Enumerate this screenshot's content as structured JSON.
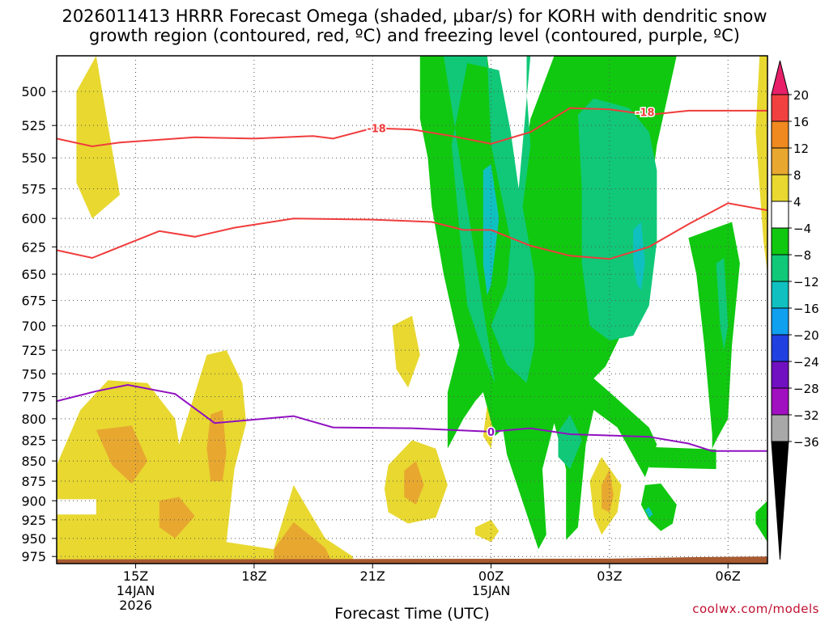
{
  "chart_data": {
    "type": "heatmap",
    "title_line1": "2026011413 HRRR Forecast Omega (shaded, μbar/s) for KORH with dendritic snow",
    "title_line2": "growth region (contoured, red, ºC) and freezing level (contoured, purple, ºC)",
    "xlabel": "Forecast Time (UTC)",
    "credit": "coolwx.com/models",
    "x_range_hours": [
      13,
      31
    ],
    "y_range_mb": [
      475,
      985
    ],
    "y_ticks": [
      "500",
      "525",
      "550",
      "575",
      "600",
      "625",
      "650",
      "675",
      "700",
      "725",
      "750",
      "775",
      "800",
      "825",
      "850",
      "875",
      "900",
      "925",
      "950",
      "975"
    ],
    "x_ticks": [
      {
        "hour": 15,
        "label": "15Z",
        "sub1": "14JAN",
        "sub2": "2026"
      },
      {
        "hour": 18,
        "label": "18Z",
        "sub1": "",
        "sub2": ""
      },
      {
        "hour": 21,
        "label": "21Z",
        "sub1": "",
        "sub2": ""
      },
      {
        "hour": 24,
        "label": "00Z",
        "sub1": "15JAN",
        "sub2": ""
      },
      {
        "hour": 27,
        "label": "03Z",
        "sub1": "",
        "sub2": ""
      },
      {
        "hour": 30,
        "label": "06Z",
        "sub1": "",
        "sub2": ""
      }
    ],
    "colorbar": {
      "labels": [
        "20",
        "16",
        "12",
        "8",
        "4",
        "−4",
        "−8",
        "−12",
        "−16",
        "−20",
        "−24",
        "−28",
        "−32",
        "−36"
      ],
      "colors_top_to_bottom": [
        "#e8206a",
        "#f04040",
        "#f08a20",
        "#e8a830",
        "#e8d830",
        "#ffffff",
        "#10c810",
        "#10c878",
        "#10c0c0",
        "#10a0f0",
        "#2040e0",
        "#7010c0",
        "#a010c0",
        "#a8a8a8",
        "#000000"
      ]
    },
    "isotherm_labels": {
      "dgz_upper": "-18",
      "dgz_upper_2": "-18",
      "freezing": "0"
    },
    "dgz_upper_mb": [
      [
        13.0,
        535
      ],
      [
        13.9,
        541
      ],
      [
        14.6,
        538
      ],
      [
        16.5,
        534
      ],
      [
        18.0,
        535
      ],
      [
        19.5,
        533
      ],
      [
        20.0,
        535
      ],
      [
        21.0,
        527
      ],
      [
        22.0,
        528
      ],
      [
        23.0,
        533
      ],
      [
        24.0,
        539
      ],
      [
        25.0,
        530
      ],
      [
        26.0,
        512
      ],
      [
        27.0,
        513
      ],
      [
        28.0,
        517
      ],
      [
        29.0,
        514
      ],
      [
        31.0,
        514
      ]
    ],
    "dgz_lower_mb": [
      [
        13.0,
        628
      ],
      [
        13.9,
        635
      ],
      [
        14.6,
        625
      ],
      [
        15.6,
        611
      ],
      [
        16.5,
        616
      ],
      [
        17.5,
        608
      ],
      [
        19.0,
        600
      ],
      [
        21.0,
        601
      ],
      [
        22.5,
        603
      ],
      [
        23.3,
        610
      ],
      [
        24.0,
        610
      ],
      [
        25.0,
        624
      ],
      [
        26.0,
        633
      ],
      [
        27.0,
        636
      ],
      [
        28.0,
        625
      ],
      [
        29.0,
        605
      ],
      [
        30.0,
        587
      ],
      [
        31.0,
        593
      ]
    ],
    "freezing_level_mb": [
      [
        13.0,
        780
      ],
      [
        14.0,
        769
      ],
      [
        14.8,
        762
      ],
      [
        16.0,
        772
      ],
      [
        17.0,
        805
      ],
      [
        19.0,
        797
      ],
      [
        20.0,
        810
      ],
      [
        22.0,
        811
      ],
      [
        24.0,
        815
      ],
      [
        25.0,
        811
      ],
      [
        26.0,
        818
      ],
      [
        28.0,
        821
      ],
      [
        29.0,
        829
      ],
      [
        29.6,
        838
      ],
      [
        31.0,
        838
      ]
    ],
    "omega_regions": [
      {
        "value_range": "4 to 8",
        "color": "#e8d830",
        "pts": [
          [
            14.0,
            475
          ],
          [
            14.6,
            580
          ],
          [
            13.9,
            600
          ],
          [
            13.5,
            570
          ],
          [
            13.5,
            500
          ]
        ]
      },
      {
        "value_range": "4 to 8",
        "color": "#e8d830",
        "pts": [
          [
            13,
            855
          ],
          [
            13.6,
            790
          ],
          [
            14.3,
            757
          ],
          [
            15.3,
            760
          ],
          [
            16.0,
            800
          ],
          [
            16.1,
            830
          ],
          [
            16.8,
            730
          ],
          [
            17.3,
            725
          ],
          [
            17.7,
            760
          ],
          [
            17.8,
            805
          ],
          [
            17.5,
            860
          ],
          [
            17.3,
            955
          ],
          [
            18.5,
            965
          ],
          [
            19.0,
            880
          ],
          [
            19.8,
            950
          ],
          [
            20.5,
            975
          ],
          [
            20.5,
            985
          ],
          [
            13,
            985
          ],
          [
            13,
            918
          ],
          [
            14,
            918
          ],
          [
            14,
            898
          ],
          [
            13,
            898
          ]
        ]
      },
      {
        "value_range": "8 to 12",
        "color": "#e8a830",
        "pts": [
          [
            14.0,
            813
          ],
          [
            14.9,
            808
          ],
          [
            15.3,
            850
          ],
          [
            14.9,
            878
          ],
          [
            14.4,
            855
          ]
        ]
      },
      {
        "value_range": "8 to 12",
        "color": "#e8a830",
        "pts": [
          [
            15.6,
            900
          ],
          [
            16.1,
            895
          ],
          [
            16.5,
            920
          ],
          [
            16.0,
            950
          ],
          [
            15.6,
            935
          ]
        ]
      },
      {
        "value_range": "8 to 12",
        "color": "#e8a830",
        "pts": [
          [
            16.9,
            795
          ],
          [
            17.2,
            790
          ],
          [
            17.3,
            840
          ],
          [
            17.2,
            875
          ],
          [
            16.9,
            875
          ],
          [
            16.8,
            835
          ]
        ]
      },
      {
        "value_range": "8 to 12",
        "color": "#e8a830",
        "pts": [
          [
            18.5,
            965
          ],
          [
            19.0,
            928
          ],
          [
            19.8,
            963
          ],
          [
            20.0,
            985
          ],
          [
            18.5,
            985
          ]
        ]
      },
      {
        "value_range": "4 to 8",
        "color": "#e8d830",
        "pts": [
          [
            21.5,
            700
          ],
          [
            22.0,
            690
          ],
          [
            22.2,
            730
          ],
          [
            21.9,
            765
          ],
          [
            21.6,
            745
          ]
        ]
      },
      {
        "value_range": "4 to 8",
        "color": "#e8d830",
        "pts": [
          [
            21.4,
            855
          ],
          [
            22.0,
            825
          ],
          [
            22.6,
            835
          ],
          [
            22.9,
            880
          ],
          [
            22.6,
            922
          ],
          [
            21.9,
            930
          ],
          [
            21.4,
            915
          ],
          [
            21.3,
            885
          ]
        ]
      },
      {
        "value_range": "8 to 12",
        "color": "#e8a830",
        "pts": [
          [
            21.8,
            862
          ],
          [
            22.1,
            850
          ],
          [
            22.3,
            880
          ],
          [
            22.1,
            905
          ],
          [
            21.8,
            895
          ]
        ]
      },
      {
        "value_range": "4 to 8",
        "color": "#e8d830",
        "pts": [
          [
            23.9,
            785
          ],
          [
            24.0,
            775
          ],
          [
            24.1,
            800
          ],
          [
            24.0,
            835
          ],
          [
            23.8,
            820
          ]
        ]
      },
      {
        "value_range": "4 to 8",
        "color": "#e8d830",
        "pts": [
          [
            23.6,
            935
          ],
          [
            24.0,
            925
          ],
          [
            24.2,
            940
          ],
          [
            24.0,
            955
          ],
          [
            23.6,
            945
          ]
        ]
      },
      {
        "value_range": "4 to 8",
        "color": "#e8d830",
        "pts": [
          [
            26.5,
            875
          ],
          [
            26.8,
            845
          ],
          [
            27.3,
            880
          ],
          [
            27.2,
            915
          ],
          [
            26.8,
            945
          ],
          [
            26.6,
            920
          ]
        ]
      },
      {
        "value_range": "8 to 12",
        "color": "#e8a830",
        "pts": [
          [
            26.8,
            880
          ],
          [
            27.0,
            860
          ],
          [
            27.1,
            893
          ],
          [
            27.0,
            915
          ],
          [
            26.8,
            910
          ]
        ]
      },
      {
        "value_range": "4 to 8",
        "color": "#e8d830",
        "pts": [
          [
            30.8,
            475
          ],
          [
            31.0,
            475
          ],
          [
            31.0,
            650
          ],
          [
            30.9,
            620
          ],
          [
            30.7,
            530
          ]
        ]
      },
      {
        "value_range": "-8 to -4",
        "color": "#10c810",
        "pts": [
          [
            22.2,
            475
          ],
          [
            23.9,
            475
          ],
          [
            24.2,
            540
          ],
          [
            24.7,
            580
          ],
          [
            25.0,
            520
          ],
          [
            25.6,
            475
          ],
          [
            28.7,
            475
          ],
          [
            28.2,
            540
          ],
          [
            27.9,
            615
          ],
          [
            27.4,
            700
          ],
          [
            26.9,
            742
          ],
          [
            26.6,
            755
          ],
          [
            27.0,
            770
          ],
          [
            28.0,
            810
          ],
          [
            28.2,
            830
          ],
          [
            27.9,
            870
          ],
          [
            27.2,
            810
          ],
          [
            26.6,
            790
          ],
          [
            26.4,
            830
          ],
          [
            26.2,
            935
          ],
          [
            25.9,
            952
          ],
          [
            25.9,
            860
          ],
          [
            25.6,
            805
          ],
          [
            25.3,
            860
          ],
          [
            25.4,
            945
          ],
          [
            25.2,
            965
          ],
          [
            24.4,
            842
          ],
          [
            24.3,
            812
          ],
          [
            24.1,
            820
          ],
          [
            23.8,
            770
          ],
          [
            23.6,
            780
          ],
          [
            23.3,
            800
          ],
          [
            22.9,
            835
          ],
          [
            22.9,
            770
          ],
          [
            23.2,
            720
          ],
          [
            22.8,
            650
          ],
          [
            22.5,
            590
          ],
          [
            22.4,
            550
          ],
          [
            22.2,
            520
          ]
        ]
      },
      {
        "value_range": "-8 to -4",
        "color": "#10c810",
        "pts": [
          [
            29.0,
            617
          ],
          [
            30.1,
            603
          ],
          [
            30.3,
            640
          ],
          [
            30.1,
            720
          ],
          [
            30.0,
            800
          ],
          [
            29.7,
            825
          ],
          [
            29.6,
            835
          ],
          [
            29.6,
            818
          ],
          [
            29.4,
            720
          ],
          [
            29.2,
            650
          ]
        ]
      },
      {
        "value_range": "-8 to -4",
        "color": "#10c810",
        "pts": [
          [
            28.0,
            833
          ],
          [
            29.7,
            836
          ],
          [
            29.7,
            860
          ],
          [
            28.0,
            858
          ]
        ]
      },
      {
        "value_range": "-8 to -4",
        "color": "#10c810",
        "pts": [
          [
            27.9,
            880
          ],
          [
            28.3,
            878
          ],
          [
            28.7,
            905
          ],
          [
            28.6,
            930
          ],
          [
            28.3,
            940
          ],
          [
            28.0,
            925
          ],
          [
            27.8,
            905
          ]
        ]
      },
      {
        "value_range": "-8 to -4",
        "color": "#10c810",
        "pts": [
          [
            30.7,
            915
          ],
          [
            31.0,
            900
          ],
          [
            31.0,
            955
          ],
          [
            30.7,
            930
          ]
        ]
      },
      {
        "value_range": "-12 to -8",
        "color": "#10c878",
        "pts": [
          [
            22.8,
            475
          ],
          [
            23.9,
            475
          ],
          [
            24.0,
            540
          ],
          [
            24.5,
            620
          ],
          [
            24.4,
            660
          ],
          [
            24.0,
            700
          ],
          [
            24.4,
            740
          ],
          [
            24.9,
            760
          ],
          [
            25.1,
            720
          ],
          [
            25.1,
            650
          ],
          [
            24.8,
            590
          ],
          [
            25.0,
            540
          ],
          [
            24.9,
            500
          ],
          [
            24.9,
            475
          ],
          [
            25.0,
            475
          ],
          [
            24.7,
            575
          ],
          [
            24.5,
            530
          ],
          [
            24.2,
            485
          ],
          [
            23.4,
            480
          ],
          [
            23.0,
            540
          ],
          [
            23.2,
            610
          ],
          [
            23.4,
            680
          ],
          [
            23.9,
            740
          ],
          [
            24.1,
            760
          ]
        ]
      },
      {
        "value_range": "-12 to -8",
        "color": "#10c878",
        "pts": [
          [
            26.2,
            517
          ],
          [
            26.6,
            505
          ],
          [
            27.5,
            512
          ],
          [
            28.0,
            530
          ],
          [
            28.2,
            560
          ],
          [
            28.2,
            620
          ],
          [
            28.0,
            680
          ],
          [
            27.6,
            710
          ],
          [
            27.0,
            715
          ],
          [
            26.5,
            700
          ],
          [
            26.3,
            640
          ],
          [
            26.3,
            575
          ]
        ]
      },
      {
        "value_range": "-12 to -8",
        "color": "#10c878",
        "pts": [
          [
            25.7,
            815
          ],
          [
            26.0,
            795
          ],
          [
            26.3,
            825
          ],
          [
            26.0,
            860
          ],
          [
            25.7,
            845
          ]
        ]
      },
      {
        "value_range": "-12 to -8",
        "color": "#10c878",
        "pts": [
          [
            29.7,
            640
          ],
          [
            29.9,
            635
          ],
          [
            30.0,
            700
          ],
          [
            29.9,
            725
          ],
          [
            29.8,
            700
          ]
        ]
      },
      {
        "value_range": "-16 to -12",
        "color": "#10c0c0",
        "pts": [
          [
            23.8,
            560
          ],
          [
            24.0,
            555
          ],
          [
            24.2,
            600
          ],
          [
            24.0,
            660
          ],
          [
            23.9,
            670
          ],
          [
            23.8,
            640
          ]
        ]
      },
      {
        "value_range": "-16 to -12",
        "color": "#10c0c0",
        "pts": [
          [
            27.6,
            610
          ],
          [
            27.8,
            603
          ],
          [
            27.9,
            640
          ],
          [
            27.8,
            665
          ],
          [
            27.7,
            660
          ],
          [
            27.6,
            640
          ]
        ]
      },
      {
        "value_range": "-16 to -12",
        "color": "#10c0c0",
        "pts": [
          [
            27.9,
            912
          ],
          [
            28.0,
            908
          ],
          [
            28.1,
            918
          ],
          [
            28.0,
            922
          ]
        ]
      }
    ]
  }
}
